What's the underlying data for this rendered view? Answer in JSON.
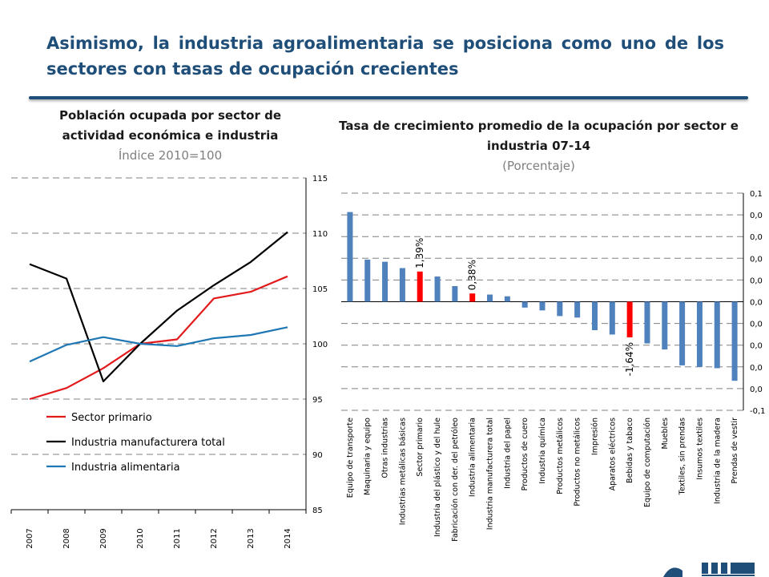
{
  "slide": {
    "title": "Asimismo, la industria agroalimentaria se posiciona como uno de los sectores con tasas de ocupación crecientes"
  },
  "colors": {
    "title": "#1f4e79",
    "sector_primario": "#e31a1c",
    "manufacturera": "#000000",
    "alimentaria": "#1f77b4",
    "bar": "#4f81bd",
    "bar_highlight": "#ff0000",
    "grid": "#808080"
  },
  "chart_data": [
    {
      "type": "line",
      "title": "Población ocupada por sector de actividad económica e industria",
      "subtitle": "Índice 2010=100",
      "x": [
        "2007",
        "2008",
        "2009",
        "2010",
        "2011",
        "2012",
        "2013",
        "2014"
      ],
      "ylim": [
        85,
        115
      ],
      "yticks": [
        85,
        90,
        95,
        100,
        105,
        110,
        115
      ],
      "y_axis_side": "right",
      "grid": true,
      "legend_position": "bottom-left",
      "series": [
        {
          "name": "Sector primario",
          "color_key": "sector_primario",
          "values": [
            95.0,
            96.0,
            97.8,
            100.0,
            100.4,
            104.1,
            104.7,
            106.1
          ]
        },
        {
          "name": "Industria manufacturera total",
          "color_key": "manufacturera",
          "values": [
            107.2,
            105.9,
            96.6,
            100.0,
            103.0,
            105.3,
            107.4,
            110.1
          ]
        },
        {
          "name": "Industria alimentaria",
          "color_key": "alimentaria",
          "values": [
            98.4,
            99.9,
            100.6,
            100.0,
            99.8,
            100.5,
            100.8,
            101.5
          ]
        }
      ]
    },
    {
      "type": "bar",
      "title": "Tasa de crecimiento promedio de la ocupación por sector e industria 07-14",
      "subtitle": "(Porcentaje)",
      "ylim": [
        -0.05,
        0.05
      ],
      "yticks": [
        -0.05,
        -0.04,
        -0.03,
        -0.02,
        -0.01,
        0.0,
        0.01,
        0.02,
        0.03,
        0.04,
        0.05
      ],
      "ytick_labels": [
        "-0,1",
        "0,0",
        "0,0",
        "0,0",
        "0,0",
        "0,0",
        "0,0",
        "0,0",
        "0,0",
        "0,0",
        "0,1"
      ],
      "y_axis_side": "right",
      "grid": true,
      "categories": [
        "Equipo de transporte",
        "Maquinaria y equipo",
        "Otras industrias",
        "Industrias metálicas básicas",
        "Sector primario",
        "Industria del plástico y del hule",
        "Fabricación con der. del petróleo",
        "Industria alimentaria",
        "Industria manufacturera total",
        "Industria del papel",
        "Productos de cuero",
        "Industria química",
        "Productos metálicos",
        "Productos no metálicos",
        "Impresión",
        "Aparatos eléctricos",
        "Bebidas y tabaco",
        "Equipo de computación",
        "Muebles",
        "Textiles, sin prendas",
        "Insumos textiles",
        "Industria de la madera",
        "Prendas de vestir"
      ],
      "values": [
        0.0413,
        0.0194,
        0.0184,
        0.0155,
        0.0139,
        0.0116,
        0.0072,
        0.0038,
        0.0033,
        0.0025,
        -0.0027,
        -0.004,
        -0.0066,
        -0.0073,
        -0.0131,
        -0.0151,
        -0.0164,
        -0.0192,
        -0.022,
        -0.0293,
        -0.03,
        -0.0306,
        -0.0364
      ],
      "highlight": [
        4,
        7,
        16
      ],
      "data_labels": [
        {
          "index": 4,
          "text": "1,39%"
        },
        {
          "index": 7,
          "text": "0,38%"
        },
        {
          "index": 16,
          "text": "-1,64%"
        }
      ]
    }
  ]
}
